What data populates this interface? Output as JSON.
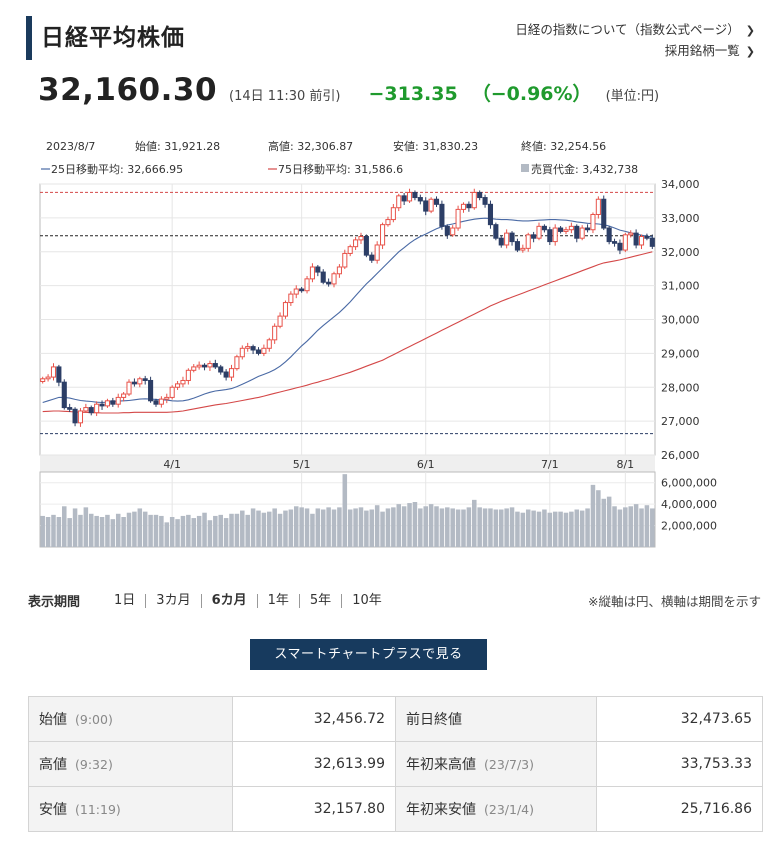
{
  "header": {
    "title": "日経平均株価",
    "link_about": "日経の指数について（指数公式ページ）",
    "link_components": "採用銘柄一覧"
  },
  "quote": {
    "price": "32,160.30",
    "time": "(14日 11:30 前引)",
    "change": "−313.35",
    "change_pct": "（−0.96%）",
    "unit": "(単位:円)"
  },
  "chart_info": {
    "date": "2023/8/7",
    "open": "始値: 31,921.28",
    "high": "高値: 32,306.87",
    "low": "安値: 31,830.23",
    "close": "終値: 32,254.56",
    "ma25": "25日移動平均: 32,666.95",
    "ma75": "75日移動平均: 31,586.6",
    "volume": "売買代金: 3,432,738"
  },
  "colors": {
    "up": "#e8534a",
    "down": "#2c3e66",
    "ma25": "#4a6aa5",
    "ma75": "#d44848",
    "volume": "#b3bac4",
    "accent_green": "#1f9a2d",
    "button": "#173a5e"
  },
  "chart_data": {
    "type": "candlestick",
    "x_ticks": [
      "4/1",
      "5/1",
      "6/1",
      "7/1",
      "8/1"
    ],
    "y_ticks": [
      "34,000",
      "33,000",
      "32,000",
      "31,000",
      "30,000",
      "29,000",
      "28,000",
      "27,000",
      "26,000"
    ],
    "ylim": [
      26000,
      34000
    ],
    "volume_ticks": [
      "6,000,000",
      "4,000,000",
      "2,000,000"
    ],
    "volume_ylim": [
      0,
      7000000
    ],
    "ref_lines": {
      "high": 33753.33,
      "prev_close": 32473.65,
      "low": 26632
    },
    "close": [
      28250,
      28300,
      28600,
      28150,
      27400,
      27350,
      26950,
      27300,
      27400,
      27250,
      27500,
      27450,
      27600,
      27500,
      27700,
      27800,
      28150,
      28100,
      28250,
      28200,
      27600,
      27500,
      27650,
      27700,
      28000,
      28100,
      28200,
      28500,
      28600,
      28650,
      28600,
      28700,
      28600,
      28450,
      28300,
      28550,
      28900,
      29150,
      29200,
      29100,
      29000,
      29150,
      29400,
      29800,
      30100,
      30500,
      30750,
      30900,
      30850,
      31200,
      31550,
      31400,
      31100,
      31050,
      31350,
      31550,
      31950,
      32150,
      32350,
      32450,
      31900,
      31750,
      32200,
      32800,
      32950,
      33300,
      33650,
      33500,
      33750,
      33600,
      33500,
      33200,
      33550,
      33400,
      32750,
      32500,
      32700,
      33250,
      33400,
      33300,
      33750,
      33600,
      33400,
      32800,
      32400,
      32200,
      32550,
      32300,
      32050,
      32100,
      32500,
      32400,
      32750,
      32650,
      32300,
      32700,
      32600,
      32650,
      32750,
      32400,
      32700,
      32650,
      33100,
      33550,
      32700,
      32300,
      32250,
      32050,
      32500,
      32550,
      32200,
      32450,
      32400,
      32160
    ],
    "ma25": [
      27550,
      27600,
      27650,
      27700,
      27700,
      27680,
      27640,
      27610,
      27590,
      27580,
      27560,
      27550,
      27560,
      27580,
      27590,
      27600,
      27610,
      27630,
      27650,
      27660,
      27650,
      27640,
      27630,
      27620,
      27600,
      27590,
      27600,
      27630,
      27680,
      27740,
      27800,
      27850,
      27890,
      27910,
      27930,
      27960,
      28020,
      28090,
      28160,
      28240,
      28320,
      28380,
      28440,
      28520,
      28620,
      28750,
      28900,
      29060,
      29220,
      29360,
      29520,
      29680,
      29820,
      29950,
      30080,
      30210,
      30360,
      30520,
      30700,
      30880,
      31050,
      31200,
      31360,
      31520,
      31680,
      31840,
      32000,
      32120,
      32250,
      32360,
      32450,
      32520,
      32600,
      32680,
      32740,
      32790,
      32820,
      32860,
      32900,
      32930,
      32960,
      32980,
      32990,
      32980,
      32960,
      32950,
      32950,
      32940,
      32920,
      32910,
      32910,
      32920,
      32930,
      32940,
      32950,
      32950,
      32940,
      32930,
      32910,
      32880,
      32860,
      32840,
      32830,
      32820,
      32800,
      32760,
      32700,
      32640,
      32600,
      32560,
      32520,
      32490,
      32460,
      32440
    ],
    "ma75": [
      27280,
      27290,
      27300,
      27300,
      27290,
      27280,
      27270,
      27260,
      27260,
      27250,
      27250,
      27240,
      27240,
      27240,
      27240,
      27250,
      27250,
      27260,
      27260,
      27260,
      27260,
      27260,
      27260,
      27260,
      27270,
      27280,
      27300,
      27330,
      27360,
      27390,
      27420,
      27450,
      27480,
      27500,
      27520,
      27550,
      27580,
      27610,
      27640,
      27670,
      27700,
      27740,
      27780,
      27820,
      27860,
      27900,
      27940,
      27980,
      28020,
      28060,
      28110,
      28150,
      28200,
      28240,
      28290,
      28340,
      28390,
      28440,
      28500,
      28560,
      28620,
      28680,
      28740,
      28800,
      28880,
      28960,
      29040,
      29120,
      29200,
      29280,
      29360,
      29440,
      29520,
      29600,
      29680,
      29760,
      29840,
      29920,
      30000,
      30080,
      30160,
      30240,
      30320,
      30400,
      30470,
      30540,
      30600,
      30660,
      30720,
      30780,
      30840,
      30900,
      30960,
      31020,
      31080,
      31140,
      31200,
      31260,
      31320,
      31380,
      31440,
      31500,
      31560,
      31620,
      31670,
      31700,
      31730,
      31760,
      31800,
      31840,
      31880,
      31920,
      31960,
      32000
    ],
    "volume": [
      2900000,
      2800000,
      3000000,
      2800000,
      3800000,
      2700000,
      3600000,
      3000000,
      3700000,
      3100000,
      2900000,
      2800000,
      3000000,
      2600000,
      3100000,
      2800000,
      3200000,
      3300000,
      3600000,
      3300000,
      3000000,
      3000000,
      2900000,
      2300000,
      2800000,
      2600000,
      2900000,
      3000000,
      2700000,
      2900000,
      3200000,
      2500000,
      2900000,
      3000000,
      2700000,
      3100000,
      3100000,
      3400000,
      3000000,
      3600000,
      3400000,
      3200000,
      3300000,
      3600000,
      3100000,
      3400000,
      3500000,
      3800000,
      3700000,
      3600000,
      3100000,
      3600000,
      3500000,
      3700000,
      3500000,
      3700000,
      6800000,
      3500000,
      3600000,
      3700000,
      3400000,
      3500000,
      3900000,
      3300000,
      3600000,
      3700000,
      4000000,
      3800000,
      4100000,
      4200000,
      3600000,
      3800000,
      4000000,
      3800000,
      3600000,
      3700000,
      3600000,
      3500000,
      3500000,
      3700000,
      4400000,
      3700000,
      3600000,
      3600000,
      3500000,
      3500000,
      3600000,
      3700000,
      3300000,
      3200000,
      3500000,
      3400000,
      3300000,
      3500000,
      3200000,
      3300000,
      3300000,
      3200000,
      3300000,
      3500000,
      3400000,
      3600000,
      5800000,
      5300000,
      4500000,
      4700000,
      3800000,
      3500000,
      3700000,
      3800000,
      4000000,
      3600000,
      3900000,
      3600000
    ]
  },
  "period": {
    "label": "表示期間",
    "options": [
      "1日",
      "3カ月",
      "6カ月",
      "1年",
      "5年",
      "10年"
    ],
    "active": "6カ月",
    "note": "※縦軸は円、横軸は期間を示す"
  },
  "button_label": "スマートチャートプラスで見る",
  "stats": {
    "open_label": "始値",
    "open_time": "(9:00)",
    "open_value": "32,456.72",
    "prev_close_label": "前日終値",
    "prev_close_value": "32,473.65",
    "high_label": "高値",
    "high_time": "(9:32)",
    "high_value": "32,613.99",
    "ytd_high_label": "年初来高値",
    "ytd_high_date": "(23/7/3)",
    "ytd_high_value": "33,753.33",
    "low_label": "安値",
    "low_time": "(11:19)",
    "low_value": "32,157.80",
    "ytd_low_label": "年初来安値",
    "ytd_low_date": "(23/1/4)",
    "ytd_low_value": "25,716.86"
  }
}
